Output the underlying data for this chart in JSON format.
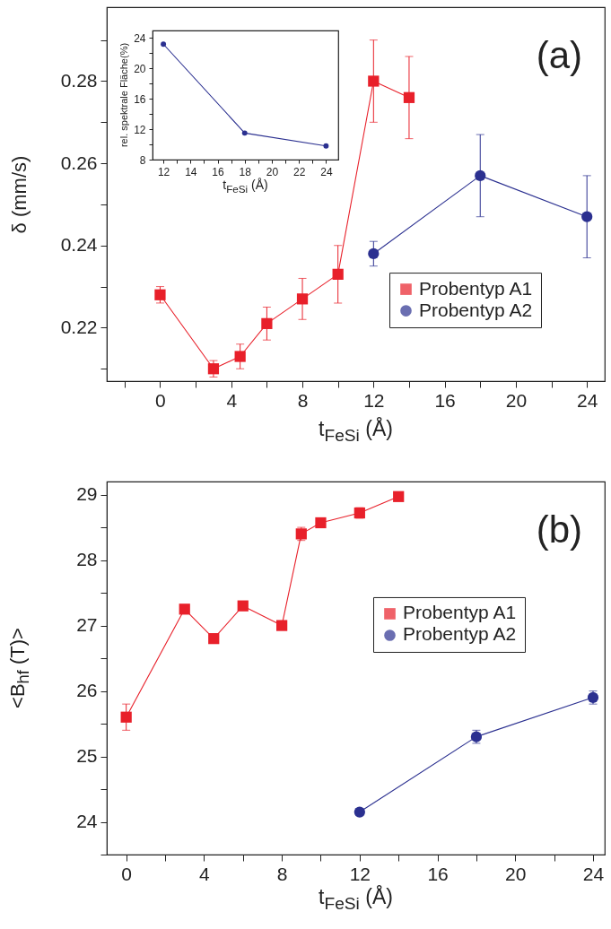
{
  "chart_data": [
    {
      "type": "line",
      "xlabel": "t$_{FeSi}$ (Å)",
      "ylabel": "δ (mm/s)",
      "annotations": [
        "(a)"
      ],
      "legend": "bottom right",
      "xlim": [
        -3,
        25
      ],
      "xticks": [
        {
          "value": -2,
          "label": null
        },
        0,
        {
          "value": 2,
          "label": null
        },
        4,
        {
          "value": 6,
          "label": null
        },
        8,
        {
          "value": 10,
          "label": null
        },
        12,
        {
          "value": 14,
          "label": null
        },
        16,
        {
          "value": 18,
          "label": null
        },
        20,
        {
          "value": 22,
          "label": null
        },
        24
      ],
      "ylim": [
        0.207,
        0.298
      ],
      "yticks": [
        {
          "value": 0.21,
          "label": null
        },
        0.22,
        {
          "value": 0.23,
          "label": null
        },
        0.24,
        {
          "value": 0.25,
          "label": null
        },
        0.26,
        {
          "value": 0.27,
          "label": null
        },
        0.28,
        {
          "value": 0.29,
          "label": null
        }
      ],
      "series": [
        {
          "name": "Probentyp A1",
          "color": "#e8202a",
          "marker": "square",
          "x": [
            0,
            3,
            4.5,
            6,
            8,
            10,
            12,
            14
          ],
          "values": [
            0.228,
            0.21,
            0.213,
            0.221,
            0.227,
            0.233,
            0.28,
            0.276
          ],
          "errors": [
            0.002,
            0.002,
            0.003,
            0.004,
            0.005,
            [
              0.226,
              0.24
            ],
            [
              0.27,
              0.29
            ],
            [
              0.266,
              0.286
            ]
          ]
        },
        {
          "name": "Probentyp A2",
          "color": "#2b3090",
          "marker": "circle",
          "x": [
            12,
            18,
            24
          ],
          "values": [
            0.238,
            0.257,
            0.247
          ],
          "errors": [
            0.003,
            0.01,
            0.01
          ]
        }
      ]
    },
    {
      "type": "line",
      "xlabel": "t$_{FeSi}$ (Å)",
      "ylabel": "rel. spektrale Fläche(%)",
      "xlim": [
        11.2,
        24.9
      ],
      "xticks": [
        12,
        {
          "value": 13,
          "label": null
        },
        14,
        {
          "value": 15,
          "label": null
        },
        16,
        {
          "value": 17,
          "label": null
        },
        18,
        {
          "value": 19,
          "label": null
        },
        20,
        {
          "value": 21,
          "label": null
        },
        22,
        {
          "value": 23,
          "label": null
        },
        24
      ],
      "ylim": [
        8,
        25
      ],
      "yticks": [
        8,
        {
          "value": 10,
          "label": null
        },
        12,
        {
          "value": 14,
          "label": null
        },
        16,
        {
          "value": 18,
          "label": null
        },
        20,
        {
          "value": 22,
          "label": null
        },
        24
      ],
      "series": [
        {
          "color": "#2b3090",
          "marker": "circle",
          "x": [
            12,
            18,
            24
          ],
          "values": [
            23.2,
            11.5,
            9.8
          ]
        }
      ]
    },
    {
      "type": "line",
      "xlabel": "t$_{FeSi}$ (Å)",
      "ylabel": "<B$_{hf}$ (T)>",
      "annotations": [
        "(b)"
      ],
      "legend": "right",
      "xlim": [
        -1,
        24.6
      ],
      "xticks": [
        0,
        {
          "value": 2,
          "label": null
        },
        4,
        {
          "value": 6,
          "label": null
        },
        8,
        {
          "value": 10,
          "label": null
        },
        12,
        {
          "value": 14,
          "label": null
        },
        16,
        {
          "value": 18,
          "label": null
        },
        20,
        {
          "value": 22,
          "label": null
        },
        24
      ],
      "ylim": [
        23.5,
        29.2
      ],
      "yticks": [
        {
          "value": 23.5,
          "label": null
        },
        24,
        {
          "value": 24.5,
          "label": null
        },
        25,
        {
          "value": 25.5,
          "label": null
        },
        26,
        {
          "value": 26.5,
          "label": null
        },
        27,
        {
          "value": 27.5,
          "label": null
        },
        28,
        {
          "value": 28.5,
          "label": null
        },
        29
      ],
      "series": [
        {
          "name": "Probentyp A1",
          "color": "#e8202a",
          "marker": "square",
          "x": [
            0,
            3,
            4.5,
            6,
            8,
            9,
            10,
            12,
            14
          ],
          "values": [
            25.6,
            27.25,
            26.8,
            27.3,
            27.0,
            28.4,
            28.57,
            28.72,
            28.97
          ],
          "errors": [
            0.2,
            0.05,
            0.05,
            0.05,
            0.05,
            0.1,
            0.05,
            0.08,
            0.05
          ]
        },
        {
          "name": "Probentyp A2",
          "color": "#2b3090",
          "marker": "circle",
          "x": [
            12,
            18,
            24
          ],
          "values": [
            24.15,
            25.3,
            25.9
          ],
          "errors": [
            0.05,
            0.1,
            0.1
          ]
        }
      ]
    }
  ]
}
